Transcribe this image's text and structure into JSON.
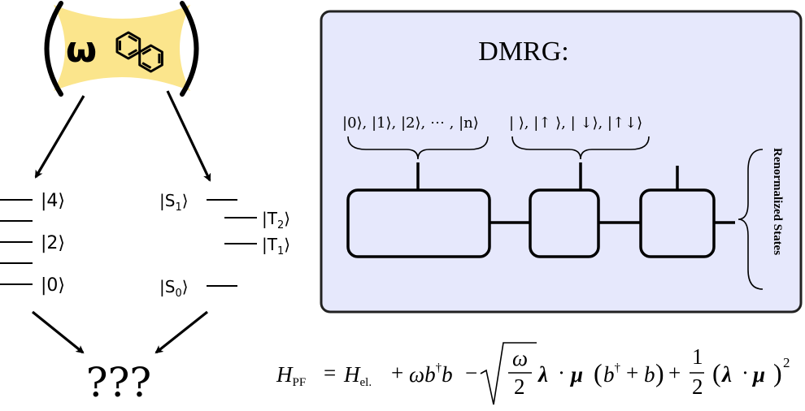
{
  "cavity": {
    "omega_symbol": "ω",
    "molecule_icon": "naphthalene-icon",
    "fill_color": "#fbe58c"
  },
  "photon_states": {
    "kets": [
      "|4⟩",
      "|2⟩",
      "|0⟩"
    ],
    "level_count": 7
  },
  "molecule_states": {
    "s1": {
      "base": "|S",
      "sub": "1",
      "close": "⟩"
    },
    "t2": {
      "base": "|T",
      "sub": "2",
      "close": "⟩"
    },
    "t1": {
      "base": "|T",
      "sub": "1",
      "close": "⟩"
    },
    "s0": {
      "base": "|S",
      "sub": "0",
      "close": "⟩"
    }
  },
  "question": "???",
  "dmrg": {
    "title": "DMRG:",
    "photon_basis": "|0⟩, |1⟩, |2⟩, ⋯ , |n⟩",
    "orbital_basis": "|  ⟩, |↑ ⟩, | ↓⟩, |↑↓⟩",
    "side_label": "Renormalized States",
    "panel_color": "#e6e8fc"
  },
  "hamiltonian": {
    "lhs": "H",
    "lhs_sub": "PF",
    "eq": "=",
    "h_el": "H",
    "h_el_sub": "el.",
    "plus1": "+",
    "omega_b": "ωb",
    "dagger": "†",
    "b": "b",
    "minus": "−",
    "frac_num": "ω",
    "frac_den": "2",
    "lambda": "λ",
    "dot": "·",
    "mu": "μ",
    "paren_open": "(",
    "b2": "b",
    "dagger2": "†",
    "plus2": "+",
    "b3": "b",
    "paren_close": ")",
    "plus3": "+",
    "half_num": "1",
    "half_den": "2",
    "paren2_open": "(",
    "lambda2": "λ",
    "dot2": "·",
    "mu2": "μ",
    "paren2_close": ")",
    "power": "2"
  }
}
